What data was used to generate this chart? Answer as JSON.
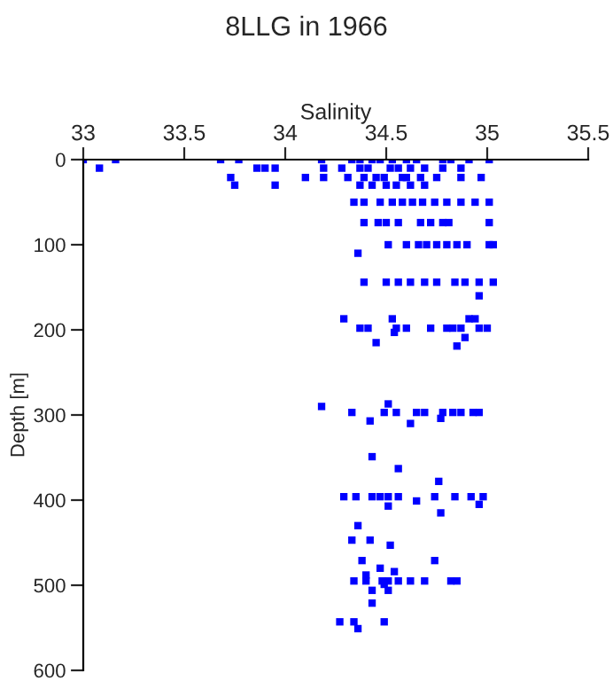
{
  "chart_data": {
    "type": "scatter",
    "title": "8LLG in 1966",
    "xlabel": "Salinity",
    "ylabel": "Depth [m]",
    "xlim": [
      33,
      35.5
    ],
    "xticks": [
      33,
      33.5,
      34,
      34.5,
      35,
      35.5
    ],
    "ylim": [
      600,
      0
    ],
    "yticks": [
      0,
      100,
      200,
      300,
      400,
      500,
      600
    ],
    "marker": "square",
    "grid": false,
    "legend": false,
    "series": [
      {
        "color": "#0000ff",
        "x": [
          33.0,
          33.16,
          33.68,
          33.77,
          34.18,
          34.33,
          34.37,
          34.43,
          34.47,
          34.53,
          34.6,
          34.65,
          34.78,
          34.82,
          34.91,
          35.01,
          33.08,
          33.86,
          33.9,
          33.95,
          34.19,
          34.28,
          34.37,
          34.41,
          34.52,
          34.56,
          34.62,
          34.69,
          34.78,
          34.87,
          33.73,
          34.1,
          34.19,
          34.31,
          34.39,
          34.45,
          34.49,
          34.58,
          34.6,
          34.67,
          34.75,
          34.87,
          34.97,
          33.75,
          33.95,
          34.37,
          34.43,
          34.5,
          34.55,
          34.62,
          34.69,
          34.34,
          34.39,
          34.47,
          34.53,
          34.58,
          34.63,
          34.68,
          34.74,
          34.8,
          34.87,
          34.94,
          35.01,
          34.39,
          34.46,
          34.5,
          34.56,
          34.67,
          34.72,
          34.78,
          34.81,
          35.01,
          34.51,
          34.6,
          34.66,
          34.7,
          34.75,
          34.8,
          34.85,
          34.9,
          35.01,
          35.03,
          34.36,
          34.39,
          34.5,
          34.56,
          34.62,
          34.69,
          34.75,
          34.84,
          34.89,
          34.96,
          35.03,
          34.96,
          34.29,
          34.53,
          34.91,
          34.94,
          34.37,
          34.41,
          34.55,
          34.6,
          34.72,
          34.8,
          34.83,
          34.87,
          34.96,
          35.0,
          34.54,
          34.45,
          34.89,
          34.85,
          34.18,
          34.51,
          34.33,
          34.49,
          34.55,
          34.65,
          34.69,
          34.78,
          34.83,
          34.87,
          34.93,
          34.96,
          34.42,
          34.62,
          34.77,
          34.43,
          34.56,
          34.76,
          34.29,
          34.35,
          34.43,
          34.47,
          34.51,
          34.56,
          34.74,
          34.84,
          34.92,
          34.98,
          34.65,
          34.96,
          34.51,
          34.77,
          34.36,
          34.33,
          34.42,
          34.52,
          34.38,
          34.74,
          34.47,
          34.54,
          34.4,
          34.34,
          34.4,
          34.48,
          34.51,
          34.56,
          34.62,
          34.69,
          34.82,
          34.85,
          34.49,
          34.43,
          34.51,
          34.43,
          34.27,
          34.34,
          34.49,
          34.36
        ],
        "values": [
          0,
          0,
          0,
          0,
          0,
          0,
          0,
          0,
          0,
          0,
          0,
          0,
          0,
          0,
          0,
          0,
          10,
          10,
          10,
          10,
          10,
          10,
          10,
          10,
          10,
          10,
          10,
          10,
          10,
          10,
          21,
          21,
          21,
          21,
          21,
          21,
          21,
          21,
          21,
          21,
          21,
          21,
          21,
          30,
          30,
          30,
          30,
          30,
          30,
          30,
          30,
          50,
          50,
          50,
          50,
          50,
          50,
          50,
          50,
          50,
          50,
          50,
          50,
          74,
          74,
          74,
          74,
          74,
          74,
          74,
          74,
          74,
          100,
          100,
          100,
          100,
          100,
          100,
          100,
          100,
          100,
          100,
          110,
          144,
          144,
          144,
          144,
          144,
          144,
          144,
          144,
          144,
          144,
          160,
          187,
          187,
          187,
          187,
          198,
          198,
          198,
          198,
          198,
          198,
          198,
          198,
          198,
          198,
          203,
          215,
          209,
          219,
          290,
          287,
          297,
          297,
          297,
          297,
          297,
          297,
          297,
          297,
          297,
          297,
          307,
          310,
          304,
          349,
          363,
          378,
          396,
          396,
          396,
          396,
          396,
          396,
          396,
          396,
          396,
          396,
          401,
          405,
          407,
          415,
          430,
          447,
          447,
          453,
          471,
          471,
          480,
          484,
          488,
          495,
          495,
          495,
          495,
          495,
          495,
          495,
          495,
          495,
          499,
          506,
          506,
          521,
          543,
          543,
          543,
          551
        ]
      }
    ]
  }
}
